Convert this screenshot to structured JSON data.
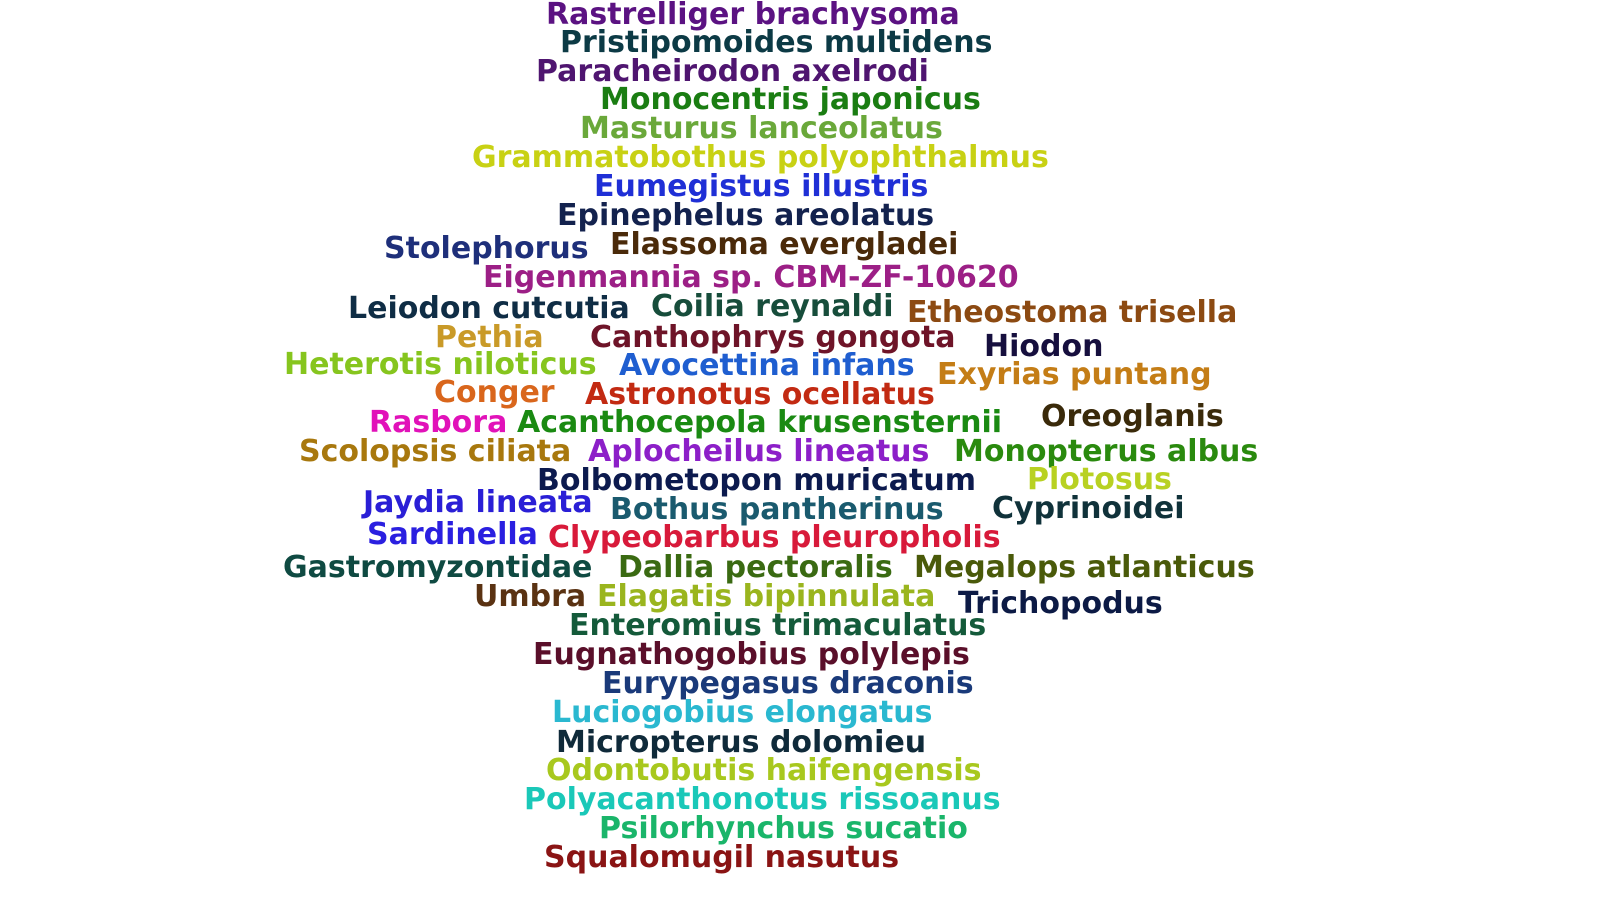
{
  "words": [
    {
      "text": "Rastrelliger brachysoma",
      "color": "#5b1282"
    },
    {
      "text": "Pristipomoides multidens",
      "color": "#0c3a45"
    },
    {
      "text": "Paracheirodon axelrodi",
      "color": "#4f1570"
    },
    {
      "text": "Monocentris japonicus",
      "color": "#1a7d12"
    },
    {
      "text": "Masturus lanceolatus",
      "color": "#6aa83a"
    },
    {
      "text": "Grammatobothus polyophthalmus",
      "color": "#c8d114"
    },
    {
      "text": "Eumegistus illustris",
      "color": "#1f2fd6"
    },
    {
      "text": "Epinephelus areolatus",
      "color": "#13224e"
    },
    {
      "text": "Stolephorus",
      "color": "#1e2f7a"
    },
    {
      "text": "Elassoma evergladei",
      "color": "#4a2a0a"
    },
    {
      "text": "Eigenmannia sp. CBM-ZF-10620",
      "color": "#9c1f86"
    },
    {
      "text": "Leiodon cutcutia",
      "color": "#0f2d45"
    },
    {
      "text": "Coilia reynaldi",
      "color": "#174d3b"
    },
    {
      "text": "Etheostoma trisella",
      "color": "#8c4a12"
    },
    {
      "text": "Pethia",
      "color": "#c99a28"
    },
    {
      "text": "Canthophrys gongota",
      "color": "#6e1428"
    },
    {
      "text": "Hiodon",
      "color": "#160f3e"
    },
    {
      "text": "Heterotis niloticus",
      "color": "#86c51e"
    },
    {
      "text": "Avocettina infans",
      "color": "#1f5ed0"
    },
    {
      "text": "Exyrias puntang",
      "color": "#c47d16"
    },
    {
      "text": "Conger",
      "color": "#d9661c"
    },
    {
      "text": "Astronotus ocellatus",
      "color": "#c22a12"
    },
    {
      "text": "Oreoglanis",
      "color": "#3a2a0a"
    },
    {
      "text": "Rasbora",
      "color": "#e112b9"
    },
    {
      "text": "Acanthocepola krusensternii",
      "color": "#1a8a12"
    },
    {
      "text": "Scolopsis ciliata",
      "color": "#a8780e"
    },
    {
      "text": "Aplocheilus lineatus",
      "color": "#8c1fc8"
    },
    {
      "text": "Monopterus albus",
      "color": "#2a8a0e"
    },
    {
      "text": "Bolbometopon muricatum",
      "color": "#0c1a4e"
    },
    {
      "text": "Plotosus",
      "color": "#b8d122"
    },
    {
      "text": "Jaydia lineata",
      "color": "#2a1fd6"
    },
    {
      "text": "Bothus pantherinus",
      "color": "#1a5a6e"
    },
    {
      "text": "Cyprinoidei",
      "color": "#10323a"
    },
    {
      "text": "Sardinella",
      "color": "#2a1fe0"
    },
    {
      "text": "Clypeobarbus pleuropholis",
      "color": "#d81a3a"
    },
    {
      "text": "Gastromyzontidae",
      "color": "#0f4a42"
    },
    {
      "text": "Dallia pectoralis",
      "color": "#3a6a12"
    },
    {
      "text": "Megalops atlanticus",
      "color": "#4a5a0a"
    },
    {
      "text": "Umbra",
      "color": "#5a3212"
    },
    {
      "text": "Elagatis bipinnulata",
      "color": "#9ab51e"
    },
    {
      "text": "Trichopodus",
      "color": "#0c1a45"
    },
    {
      "text": "Enteromius trimaculatus",
      "color": "#145a3a"
    },
    {
      "text": "Eugnathogobius polylepis",
      "color": "#5a0f2a"
    },
    {
      "text": "Eurypegasus draconis",
      "color": "#1a3a7a"
    },
    {
      "text": "Luciogobius elongatus",
      "color": "#2ab8d0"
    },
    {
      "text": "Micropterus dolomieu",
      "color": "#0f2a3a"
    },
    {
      "text": "Odontobutis haifengensis",
      "color": "#a8c81e"
    },
    {
      "text": "Polyacanthonotus rissoanus",
      "color": "#1ac8b8"
    },
    {
      "text": "Psilorhynchus sucatio",
      "color": "#1ab56a"
    },
    {
      "text": "Squalomugil nasutus",
      "color": "#8a1414"
    }
  ]
}
